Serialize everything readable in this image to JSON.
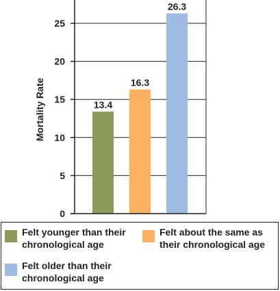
{
  "chart_data": {
    "type": "bar",
    "categories": [
      "Felt younger than their\nchronological age",
      "Felt about the same as\ntheir chronological age",
      "Felt older than their\nchronological age"
    ],
    "values": [
      13.4,
      16.3,
      26.3
    ],
    "value_labels": [
      "13.4",
      "16.3",
      "26.3"
    ],
    "colors": [
      "#8a9a5b",
      "#fbb061",
      "#9dbbe3"
    ],
    "title": "",
    "xlabel": "",
    "ylabel": "Mortality Rate",
    "ylim": [
      0,
      28
    ],
    "yticks": [
      0,
      5,
      10,
      15,
      20,
      25
    ],
    "grid": true,
    "legend_position": "bottom"
  }
}
